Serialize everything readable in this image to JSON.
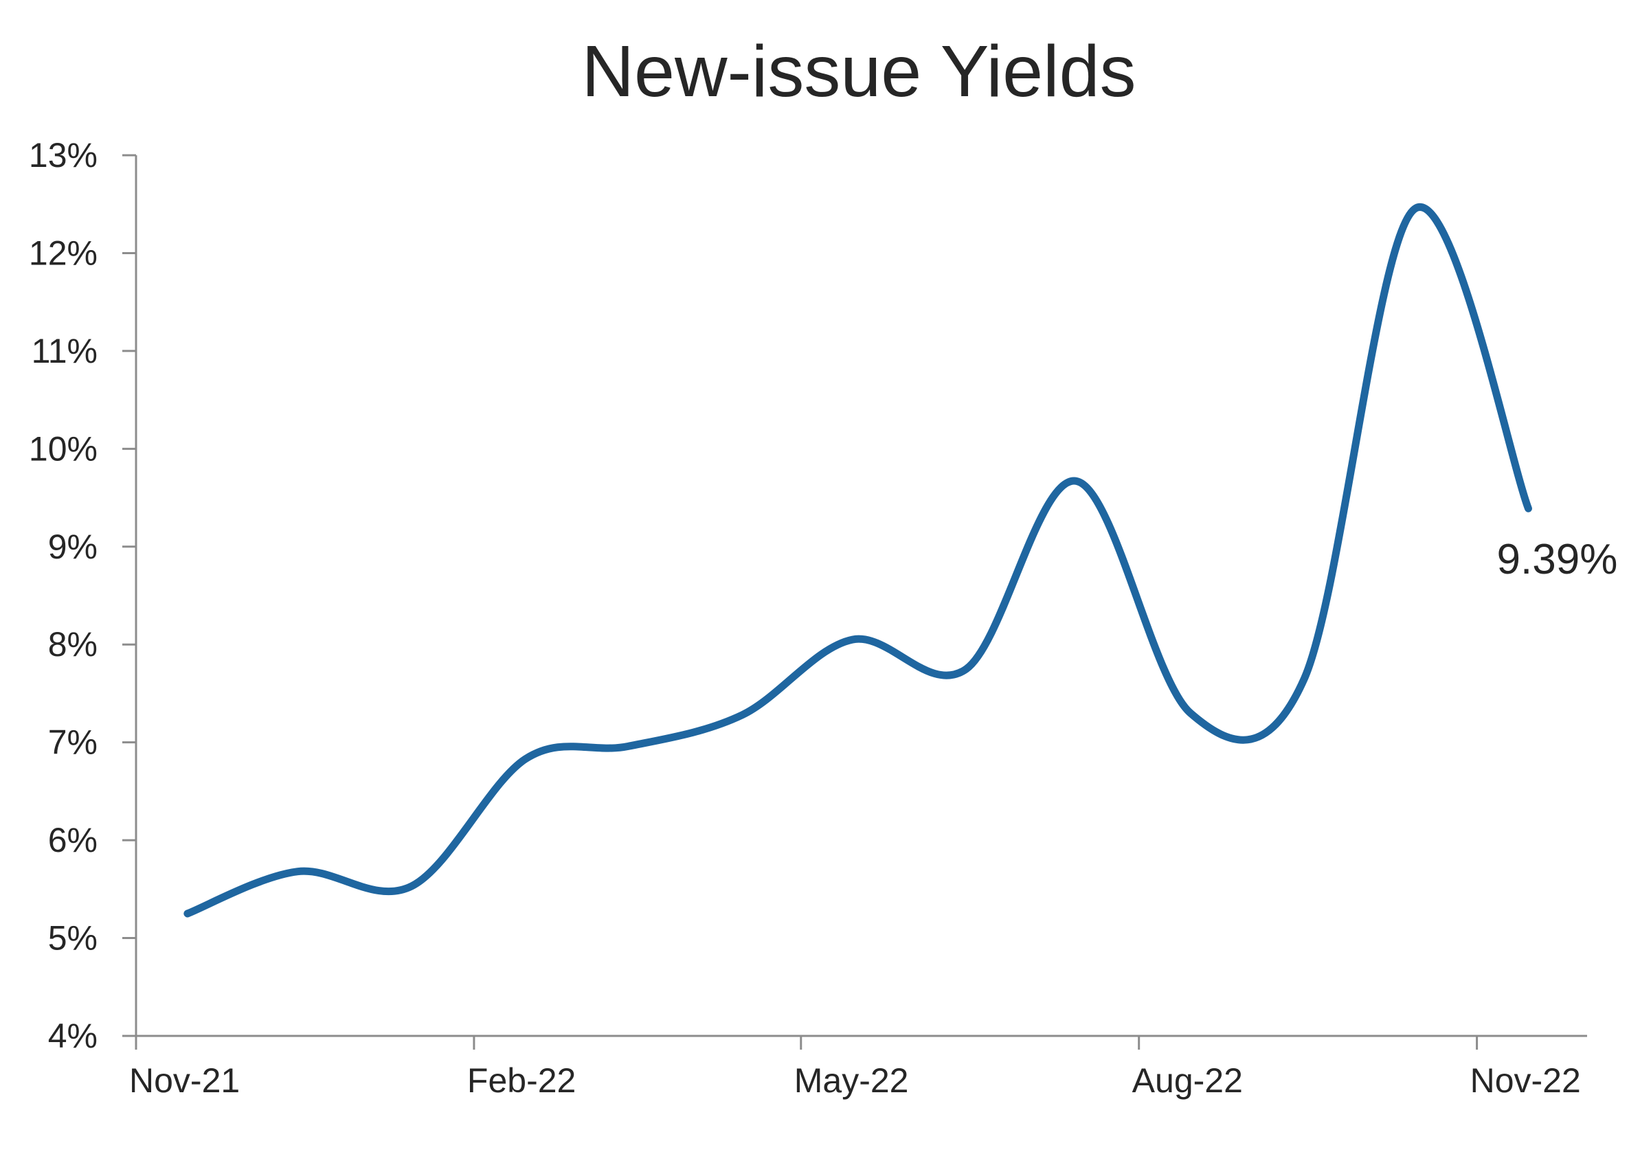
{
  "chart_data": {
    "type": "line",
    "title": "New-issue Yields",
    "xlabel": "",
    "ylabel": "",
    "x": [
      "2021-11-15",
      "2021-12-15",
      "2022-01-15",
      "2022-02-15",
      "2022-03-15",
      "2022-04-15",
      "2022-05-15",
      "2022-06-15",
      "2022-07-15",
      "2022-08-15",
      "2022-09-15",
      "2022-10-15",
      "2022-11-15"
    ],
    "series": [
      {
        "values": [
          5.25,
          5.68,
          5.53,
          6.83,
          6.96,
          7.28,
          8.05,
          7.75,
          9.67,
          7.3,
          7.65,
          12.45,
          9.39
        ]
      }
    ],
    "ylim": [
      4,
      13
    ],
    "y_ticks": [
      4,
      5,
      6,
      7,
      8,
      9,
      10,
      11,
      12,
      13
    ],
    "y_tick_labels": [
      "4%",
      "5%",
      "6%",
      "7%",
      "8%",
      "9%",
      "10%",
      "11%",
      "12%",
      "13%"
    ],
    "x_ticks": [
      "2021-11-01",
      "2022-02-01",
      "2022-05-01",
      "2022-08-01",
      "2022-11-01"
    ],
    "x_tick_labels": [
      "Nov-21",
      "Feb-22",
      "May-22",
      "Aug-22",
      "Nov-22"
    ],
    "xlim": [
      "2021-11-01",
      "2022-12-01"
    ],
    "data_label": {
      "text": "9.39%",
      "point_index": 12
    },
    "grid": false,
    "legend": "none",
    "line_color": "#1F66A0",
    "axis_color": "#8C8C8C",
    "text_color": "#262626"
  }
}
